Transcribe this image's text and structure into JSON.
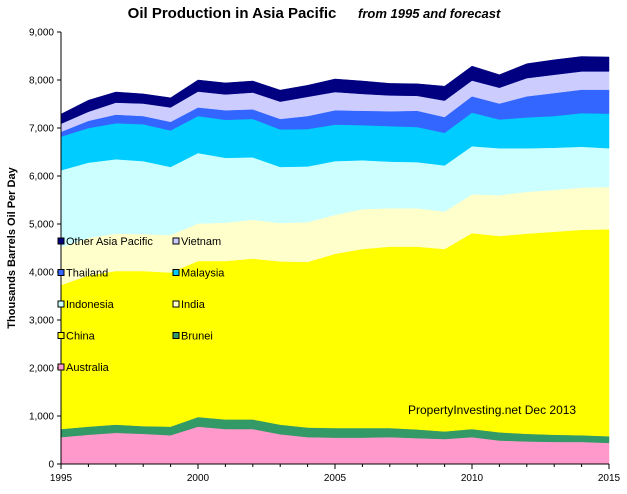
{
  "chart_data": {
    "type": "area",
    "title": "Oil Production  in Asia  Pacific",
    "subtitle": "from 1995 and forecast",
    "ylabel": "Thousands Barrels Oil Per Day",
    "xlabel": "",
    "xlim": [
      1995,
      2015
    ],
    "ylim": [
      0,
      9000
    ],
    "x_tick_labels": [
      "1995",
      "2000",
      "2005",
      "2010",
      "2015"
    ],
    "x_tick_values": [
      1995,
      2000,
      2005,
      2010,
      2015
    ],
    "y_tick_labels": [
      "0",
      "1,000",
      "2,000",
      "3,000",
      "4,000",
      "5,000",
      "6,000",
      "7,000",
      "8,000",
      "9,000"
    ],
    "y_tick_values": [
      0,
      1000,
      2000,
      3000,
      4000,
      5000,
      6000,
      7000,
      8000,
      9000
    ],
    "grid": false,
    "stacked": true,
    "legend_position": "inside-left",
    "annotation": "PropertyInvesting.net  Dec 2013",
    "x": [
      1995,
      1996,
      1997,
      1998,
      1999,
      2000,
      2001,
      2002,
      2003,
      2004,
      2005,
      2006,
      2007,
      2008,
      2009,
      2010,
      2011,
      2012,
      2013,
      2014,
      2015
    ],
    "series": [
      {
        "name": "Australia",
        "color": "#FF99CC",
        "values": [
          560,
          610,
          650,
          630,
          600,
          780,
          730,
          730,
          620,
          560,
          550,
          550,
          560,
          540,
          520,
          560,
          490,
          470,
          460,
          460,
          440
        ]
      },
      {
        "name": "Brunei",
        "color": "#339966",
        "values": [
          170,
          170,
          170,
          160,
          180,
          200,
          200,
          200,
          200,
          200,
          200,
          200,
          190,
          180,
          160,
          170,
          170,
          160,
          150,
          140,
          140
        ]
      },
      {
        "name": "China",
        "color": "#FFFF00",
        "values": [
          3000,
          3150,
          3200,
          3230,
          3210,
          3250,
          3300,
          3350,
          3400,
          3450,
          3630,
          3730,
          3780,
          3810,
          3800,
          4080,
          4090,
          4170,
          4230,
          4280,
          4310
        ]
      },
      {
        "name": "India",
        "color": "#FFFFCC",
        "values": [
          790,
          780,
          780,
          770,
          780,
          780,
          800,
          810,
          800,
          830,
          810,
          830,
          800,
          800,
          780,
          810,
          850,
          870,
          870,
          880,
          880
        ]
      },
      {
        "name": "Indonesia",
        "color": "#CCFFFF",
        "values": [
          1600,
          1570,
          1550,
          1520,
          1420,
          1470,
          1350,
          1300,
          1170,
          1160,
          1120,
          1020,
          970,
          960,
          960,
          1000,
          980,
          910,
          880,
          850,
          810
        ]
      },
      {
        "name": "Malaysia",
        "color": "#00CCFF",
        "values": [
          700,
          720,
          750,
          770,
          760,
          770,
          790,
          800,
          780,
          780,
          760,
          730,
          740,
          730,
          680,
          700,
          600,
          640,
          660,
          700,
          720
        ]
      },
      {
        "name": "Thailand",
        "color": "#3366FF",
        "values": [
          100,
          150,
          180,
          170,
          180,
          180,
          200,
          200,
          220,
          270,
          300,
          300,
          310,
          340,
          330,
          340,
          330,
          440,
          480,
          490,
          500
        ]
      },
      {
        "name": "Vietnam",
        "color": "#CCCCFF",
        "values": [
          170,
          190,
          250,
          260,
          300,
          330,
          330,
          350,
          360,
          400,
          380,
          350,
          330,
          310,
          340,
          330,
          330,
          380,
          380,
          380,
          380
        ]
      },
      {
        "name": "Other Asia Pacific",
        "color": "#000080",
        "values": [
          200,
          240,
          220,
          200,
          200,
          240,
          240,
          240,
          240,
          240,
          270,
          270,
          250,
          250,
          300,
          300,
          270,
          300,
          310,
          310,
          300
        ]
      }
    ],
    "legend": [
      {
        "label": "Other Asia Pacific",
        "color": "#000080"
      },
      {
        "label": "Vietnam",
        "color": "#CCCCFF"
      },
      {
        "label": "Thailand",
        "color": "#3366FF"
      },
      {
        "label": "Malaysia",
        "color": "#00CCFF"
      },
      {
        "label": "Indonesia",
        "color": "#CCFFFF"
      },
      {
        "label": "India",
        "color": "#FFFFCC"
      },
      {
        "label": "China",
        "color": "#FFFF00"
      },
      {
        "label": "Brunei",
        "color": "#339966"
      },
      {
        "label": "Australia",
        "color": "#FF99CC"
      }
    ]
  }
}
